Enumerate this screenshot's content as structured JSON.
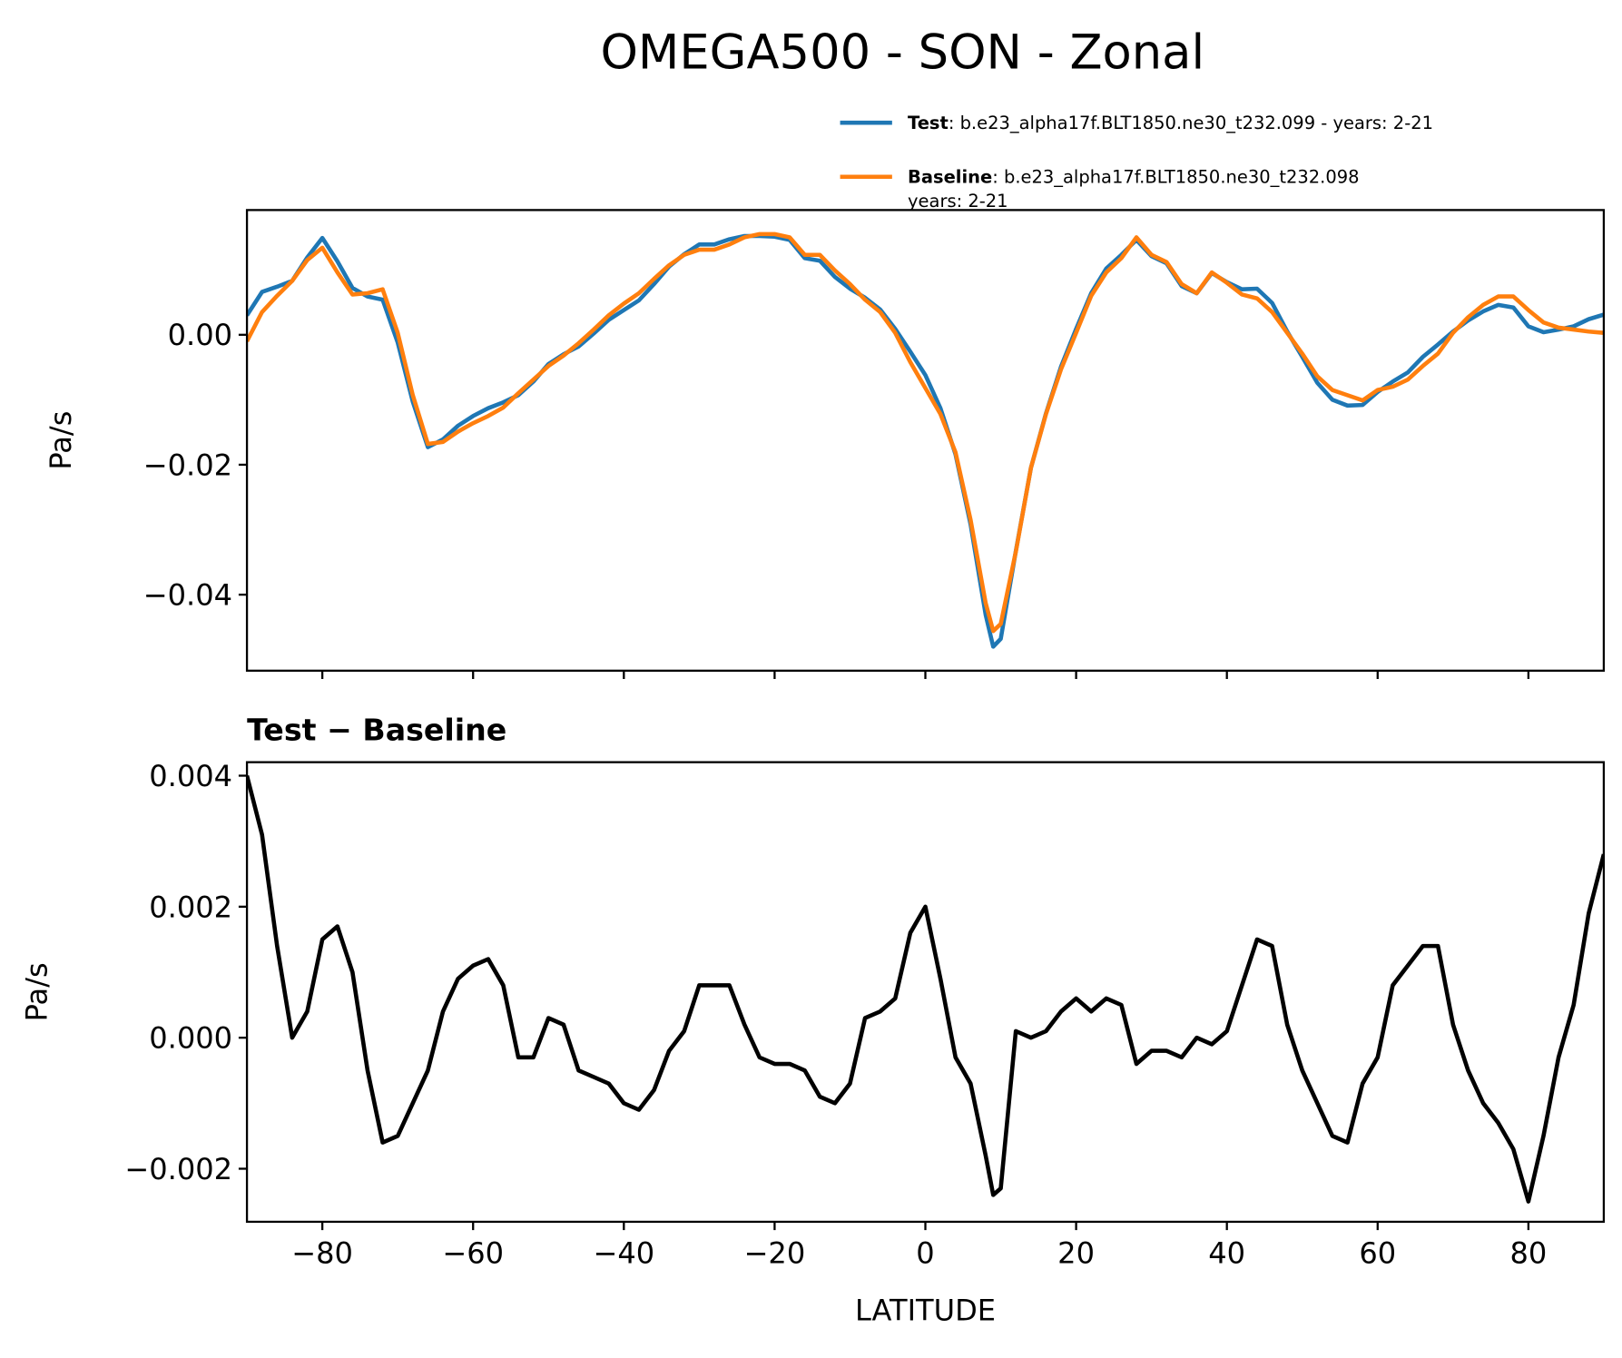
{
  "title": "OMEGA500 - SON - Zonal",
  "chart_data": [
    {
      "type": "line",
      "ylabel": "Pa/s",
      "legend": "upper right outside",
      "x": [
        -90,
        -88,
        -86,
        -84,
        -82,
        -80,
        -78,
        -76,
        -74,
        -72,
        -70,
        -68,
        -66,
        -64,
        -62,
        -60,
        -58,
        -56,
        -54,
        -52,
        -50,
        -48,
        -46,
        -44,
        -42,
        -40,
        -38,
        -36,
        -34,
        -32,
        -30,
        -28,
        -26,
        -24,
        -22,
        -20,
        -18,
        -16,
        -14,
        -12,
        -10,
        -8,
        -6,
        -4,
        -2,
        0,
        2,
        4,
        6,
        8,
        9,
        10,
        12,
        14,
        16,
        18,
        20,
        22,
        24,
        26,
        28,
        30,
        32,
        34,
        36,
        38,
        40,
        42,
        44,
        46,
        48,
        50,
        52,
        54,
        56,
        58,
        60,
        62,
        64,
        66,
        68,
        70,
        72,
        74,
        76,
        78,
        80,
        82,
        84,
        86,
        88,
        90
      ],
      "series": [
        {
          "name": "Test",
          "label_lines": [
            ": b.e23_alpha17f.BLT1850.ne30_t232.099 - years: 2-21"
          ],
          "color": "#1f77b4",
          "values": [
            0.003,
            0.0066,
            0.0074,
            0.0083,
            0.0119,
            0.0149,
            0.0113,
            0.0072,
            0.0059,
            0.0054,
            -0.0012,
            -0.0103,
            -0.0173,
            -0.0161,
            -0.014,
            -0.0125,
            -0.0113,
            -0.0104,
            -0.0093,
            -0.0072,
            -0.0045,
            -0.003,
            -0.0018,
            0.0002,
            0.0023,
            0.0038,
            0.0053,
            0.0078,
            0.0105,
            0.0124,
            0.0139,
            0.0139,
            0.0147,
            0.0152,
            0.0152,
            0.0151,
            0.0146,
            0.0118,
            0.0114,
            0.0089,
            0.0071,
            0.0057,
            0.0039,
            0.0009,
            -0.0026,
            -0.0062,
            -0.0113,
            -0.0184,
            -0.0292,
            -0.0431,
            -0.048,
            -0.0468,
            -0.0333,
            -0.0205,
            -0.0121,
            -0.0049,
            0.0009,
            0.0064,
            0.0102,
            0.0123,
            0.0146,
            0.0121,
            0.011,
            0.0075,
            0.0064,
            0.0095,
            0.0081,
            0.007,
            0.0071,
            0.0049,
            0.0005,
            -0.0034,
            -0.0074,
            -0.01,
            -0.0109,
            -0.0108,
            -0.0088,
            -0.0072,
            -0.0058,
            -0.0034,
            -0.0015,
            0.0005,
            0.0022,
            0.0036,
            0.0046,
            0.0042,
            0.0013,
            0.0004,
            0.0008,
            0.0013,
            0.0024,
            0.0031
          ]
        },
        {
          "name": "Baseline",
          "label_lines": [
            ": b.e23_alpha17f.BLT1850.ne30_t232.098",
            "years: 2-21"
          ],
          "color": "#ff7f0e",
          "values": [
            -0.001,
            0.0035,
            0.006,
            0.0083,
            0.0115,
            0.0134,
            0.0096,
            0.0062,
            0.0064,
            0.007,
            0.0003,
            -0.0093,
            -0.0168,
            -0.0165,
            -0.0149,
            -0.0136,
            -0.0125,
            -0.0112,
            -0.009,
            -0.0069,
            -0.0048,
            -0.0032,
            -0.0013,
            0.0008,
            0.003,
            0.0048,
            0.0064,
            0.0086,
            0.0107,
            0.0123,
            0.0131,
            0.0131,
            0.0139,
            0.015,
            0.0155,
            0.0155,
            0.015,
            0.0123,
            0.0123,
            0.0099,
            0.0078,
            0.0054,
            0.0035,
            0.0003,
            -0.0042,
            -0.0082,
            -0.0122,
            -0.0181,
            -0.0285,
            -0.0413,
            -0.0456,
            -0.0445,
            -0.0334,
            -0.0205,
            -0.0122,
            -0.0053,
            0.0003,
            0.006,
            0.0096,
            0.0118,
            0.015,
            0.0123,
            0.0112,
            0.0078,
            0.0064,
            0.0096,
            0.008,
            0.0062,
            0.0056,
            0.0035,
            0.0003,
            -0.0029,
            -0.0064,
            -0.0085,
            -0.0093,
            -0.0101,
            -0.0085,
            -0.008,
            -0.0069,
            -0.0048,
            -0.0029,
            0.0003,
            0.0027,
            0.0046,
            0.0059,
            0.0059,
            0.0038,
            0.0019,
            0.0011,
            0.0008,
            0.0005,
            0.0003
          ]
        }
      ],
      "xlim": [
        -90,
        90
      ],
      "xticks": [
        -80,
        -60,
        -40,
        -20,
        0,
        20,
        40,
        60,
        80
      ],
      "xtick_labels": false,
      "ylim": [
        -0.0517,
        0.0192
      ],
      "yticks": [
        {
          "value": -0.04,
          "label": "−0.04"
        },
        {
          "value": -0.02,
          "label": "−0.02"
        },
        {
          "value": 0,
          "label": "0.00"
        }
      ]
    },
    {
      "type": "line",
      "subtitle": "Test − Baseline",
      "ylabel": "Pa/s",
      "xlabel": "LATITUDE",
      "x": [
        -90,
        -88,
        -86,
        -84,
        -82,
        -80,
        -78,
        -76,
        -74,
        -72,
        -70,
        -68,
        -66,
        -64,
        -62,
        -60,
        -58,
        -56,
        -54,
        -52,
        -50,
        -48,
        -46,
        -44,
        -42,
        -40,
        -38,
        -36,
        -34,
        -32,
        -30,
        -28,
        -26,
        -24,
        -22,
        -20,
        -18,
        -16,
        -14,
        -12,
        -10,
        -8,
        -6,
        -4,
        -2,
        0,
        2,
        4,
        6,
        8,
        9,
        10,
        12,
        14,
        16,
        18,
        20,
        22,
        24,
        26,
        28,
        30,
        32,
        34,
        36,
        38,
        40,
        42,
        44,
        46,
        48,
        50,
        52,
        54,
        56,
        58,
        60,
        62,
        64,
        66,
        68,
        70,
        72,
        74,
        76,
        78,
        80,
        82,
        84,
        86,
        88,
        90
      ],
      "series": [
        {
          "color": "#000000",
          "values": [
            0.004,
            0.0031,
            0.0014,
            0.0,
            0.0004,
            0.0015,
            0.0017,
            0.001,
            -0.0005,
            -0.0016,
            -0.0015,
            -0.001,
            -0.0005,
            0.0004,
            0.0009,
            0.0011,
            0.0012,
            0.0008,
            -0.0003,
            -0.0003,
            0.0003,
            0.0002,
            -0.0005,
            -0.0006,
            -0.0007,
            -0.001,
            -0.0011,
            -0.0008,
            -0.0002,
            0.0001,
            0.0008,
            0.0008,
            0.0008,
            0.0002,
            -0.0003,
            -0.0004,
            -0.0004,
            -0.0005,
            -0.0009,
            -0.001,
            -0.0007,
            0.0003,
            0.0004,
            0.0006,
            0.0016,
            0.002,
            0.0009,
            -0.0003,
            -0.0007,
            -0.0018,
            -0.0024,
            -0.0023,
            0.0001,
            0.0,
            0.0001,
            0.0004,
            0.0006,
            0.0004,
            0.0006,
            0.0005,
            -0.0004,
            -0.0002,
            -0.0002,
            -0.0003,
            0.0,
            -0.0001,
            0.0001,
            0.0008,
            0.0015,
            0.0014,
            0.0002,
            -0.0005,
            -0.001,
            -0.0015,
            -0.0016,
            -0.0007,
            -0.0003,
            0.0008,
            0.0011,
            0.0014,
            0.0014,
            0.0002,
            -0.0005,
            -0.001,
            -0.0013,
            -0.0017,
            -0.0025,
            -0.0015,
            -0.0003,
            0.0005,
            0.0019,
            0.0028
          ]
        }
      ],
      "xlim": [
        -90,
        90
      ],
      "xticks": [
        {
          "value": -80,
          "label": "−80"
        },
        {
          "value": -60,
          "label": "−60"
        },
        {
          "value": -40,
          "label": "−40"
        },
        {
          "value": -20,
          "label": "−20"
        },
        0,
        20,
        40,
        60,
        80
      ],
      "xtick_labels": true,
      "ylim": [
        -0.00281,
        0.004206
      ],
      "yticks": [
        {
          "value": -0.002,
          "label": "−0.002"
        },
        {
          "value": 0,
          "label": "0.000"
        },
        {
          "value": 0.002,
          "label": "0.002"
        },
        {
          "value": 0.004,
          "label": "0.004"
        }
      ]
    }
  ]
}
